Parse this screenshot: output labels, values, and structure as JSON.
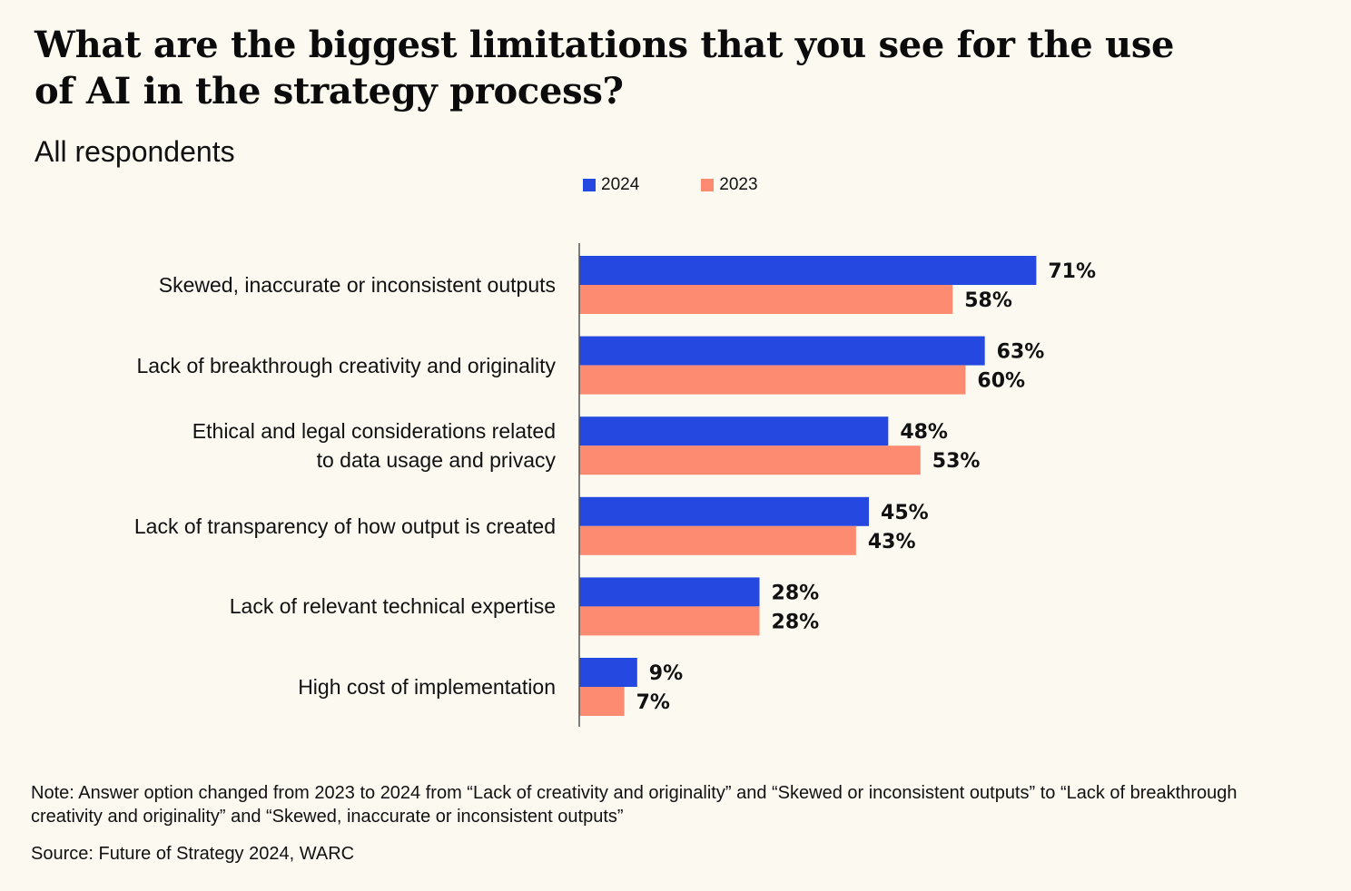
{
  "title": "What are the biggest limitations that you see for the use of AI in the strategy process?",
  "subtitle": "All respondents",
  "colors": {
    "background": "#fcf9f1",
    "series_2024": "#2549e0",
    "series_2023": "#fd8b72",
    "axis": "#555555",
    "text": "#111111"
  },
  "chart_data": {
    "type": "bar",
    "orientation": "horizontal",
    "categories": [
      "Skewed, inaccurate or inconsistent outputs",
      "Lack of breakthrough creativity and originality",
      "Ethical and legal considerations related to data usage and privacy",
      "Lack of transparency of how output is created",
      "Lack of relevant technical expertise",
      "High cost of implementation"
    ],
    "category_lines": [
      [
        "Skewed, inaccurate or inconsistent outputs"
      ],
      [
        "Lack of breakthrough creativity and originality"
      ],
      [
        "Ethical and legal considerations related",
        "to data usage and privacy"
      ],
      [
        "Lack of transparency of how output is created"
      ],
      [
        "Lack of relevant technical expertise"
      ],
      [
        "High cost of implementation"
      ]
    ],
    "series": [
      {
        "name": "2024",
        "values": [
          71,
          63,
          48,
          45,
          28,
          9
        ],
        "labels": [
          "71%",
          "63%",
          "48%",
          "45%",
          "28%",
          "9%"
        ]
      },
      {
        "name": "2023",
        "values": [
          58,
          60,
          53,
          43,
          28,
          7
        ],
        "labels": [
          "58%",
          "60%",
          "53%",
          "43%",
          "28%",
          "7%"
        ]
      }
    ],
    "unit": "%",
    "xlim": [
      0,
      100
    ],
    "grid": false,
    "legend_position": "top-center"
  },
  "legend": {
    "items": [
      {
        "label": "2024"
      },
      {
        "label": "2023"
      }
    ]
  },
  "note": "Note: Answer option changed from 2023 to 2024 from “Lack of creativity and originality” and “Skewed or inconsistent outputs” to “Lack of breakthrough creativity and originality” and “Skewed, inaccurate or inconsistent outputs”",
  "source": "Source: Future of Strategy 2024, WARC"
}
